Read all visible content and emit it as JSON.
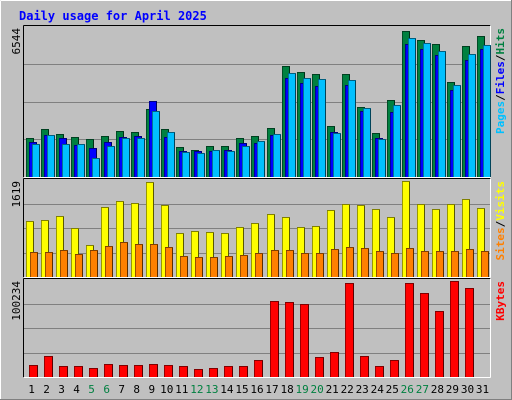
{
  "chart_data": [
    {
      "type": "bar",
      "title": "Daily usage for April 2025",
      "categories": [
        "1",
        "2",
        "3",
        "4",
        "5",
        "6",
        "7",
        "8",
        "9",
        "10",
        "11",
        "12",
        "13",
        "14",
        "15",
        "16",
        "17",
        "18",
        "19",
        "20",
        "21",
        "22",
        "23",
        "24",
        "25",
        "26",
        "27",
        "28",
        "29",
        "30",
        "31"
      ],
      "weekend_days": [
        "5",
        "6",
        "12",
        "13",
        "19",
        "20",
        "26",
        "27"
      ],
      "ylabel": [
        "Pages",
        "Files",
        "Hits"
      ],
      "ytick_label": "6544",
      "ylim": [
        0,
        6544
      ],
      "series": [
        {
          "name": "Hits",
          "color": "#008040",
          "values": [
            1720,
            2130,
            1900,
            1760,
            1680,
            1780,
            2000,
            1980,
            2970,
            2110,
            1300,
            1200,
            1340,
            1360,
            1700,
            1780,
            2160,
            4880,
            4600,
            4520,
            2260,
            4540,
            3080,
            1920,
            3400,
            6410,
            6020,
            5830,
            4180,
            5750,
            6190
          ]
        },
        {
          "name": "Files",
          "color": "#0000ff",
          "values": [
            1540,
            1830,
            1700,
            1390,
            1270,
            1540,
            1750,
            1820,
            3330,
            1770,
            1130,
            1120,
            1150,
            1190,
            1490,
            1510,
            1860,
            4340,
            4120,
            3990,
            1960,
            4050,
            2910,
            1700,
            2870,
            5830,
            5610,
            5340,
            3810,
            5160,
            5610
          ]
        },
        {
          "name": "Pages",
          "color": "#00c0ff",
          "values": [
            1470,
            1830,
            1470,
            1470,
            820,
            1380,
            1710,
            1730,
            2880,
            1970,
            1100,
            1070,
            1170,
            1130,
            1370,
            1580,
            1880,
            4570,
            4350,
            4300,
            1940,
            4250,
            3040,
            1670,
            3180,
            6100,
            5890,
            5540,
            4050,
            5420,
            5780
          ]
        }
      ],
      "grid": true
    },
    {
      "type": "bar",
      "categories": [
        "1",
        "2",
        "3",
        "4",
        "5",
        "6",
        "7",
        "8",
        "9",
        "10",
        "11",
        "12",
        "13",
        "14",
        "15",
        "16",
        "17",
        "18",
        "19",
        "20",
        "21",
        "22",
        "23",
        "24",
        "25",
        "26",
        "27",
        "28",
        "29",
        "30",
        "31"
      ],
      "ylabel": [
        "Sites",
        "Visits"
      ],
      "ytick_label": "1619",
      "ylim": [
        0,
        1619
      ],
      "series": [
        {
          "name": "Visits",
          "color": "#ffff00",
          "values": [
            936,
            958,
            1021,
            828,
            545,
            1181,
            1279,
            1246,
            1597,
            1222,
            739,
            778,
            754,
            748,
            842,
            910,
            1064,
            1005,
            842,
            858,
            1135,
            1232,
            1216,
            1150,
            1010,
            1619,
            1227,
            1150,
            1230,
            1322,
            1164
          ]
        },
        {
          "name": "Sites",
          "color": "#ff8000",
          "values": [
            423,
            423,
            448,
            386,
            455,
            516,
            587,
            562,
            551,
            509,
            357,
            342,
            337,
            346,
            378,
            410,
            449,
            457,
            407,
            412,
            469,
            509,
            487,
            443,
            397,
            489,
            440,
            435,
            446,
            480,
            437
          ]
        }
      ],
      "grid": true
    },
    {
      "type": "bar",
      "categories": [
        "1",
        "2",
        "3",
        "4",
        "5",
        "6",
        "7",
        "8",
        "9",
        "10",
        "11",
        "12",
        "13",
        "14",
        "15",
        "16",
        "17",
        "18",
        "19",
        "20",
        "21",
        "22",
        "23",
        "24",
        "25",
        "26",
        "27",
        "28",
        "29",
        "30",
        "31"
      ],
      "ylabel": [
        "KBytes"
      ],
      "ytick_label": "100234",
      "ylim": [
        0,
        100234
      ],
      "series": [
        {
          "name": "KBytes",
          "color": "#ff0000",
          "values": [
            12500,
            21800,
            11300,
            11300,
            9800,
            13400,
            12500,
            12500,
            13400,
            12500,
            11300,
            8700,
            9800,
            11300,
            11300,
            17400,
            79500,
            77800,
            76200,
            20500,
            25900,
            98500,
            21800,
            11300,
            17400,
            98500,
            87800,
            68700,
            100234,
            92800,
            0
          ]
        }
      ],
      "grid": true
    }
  ]
}
